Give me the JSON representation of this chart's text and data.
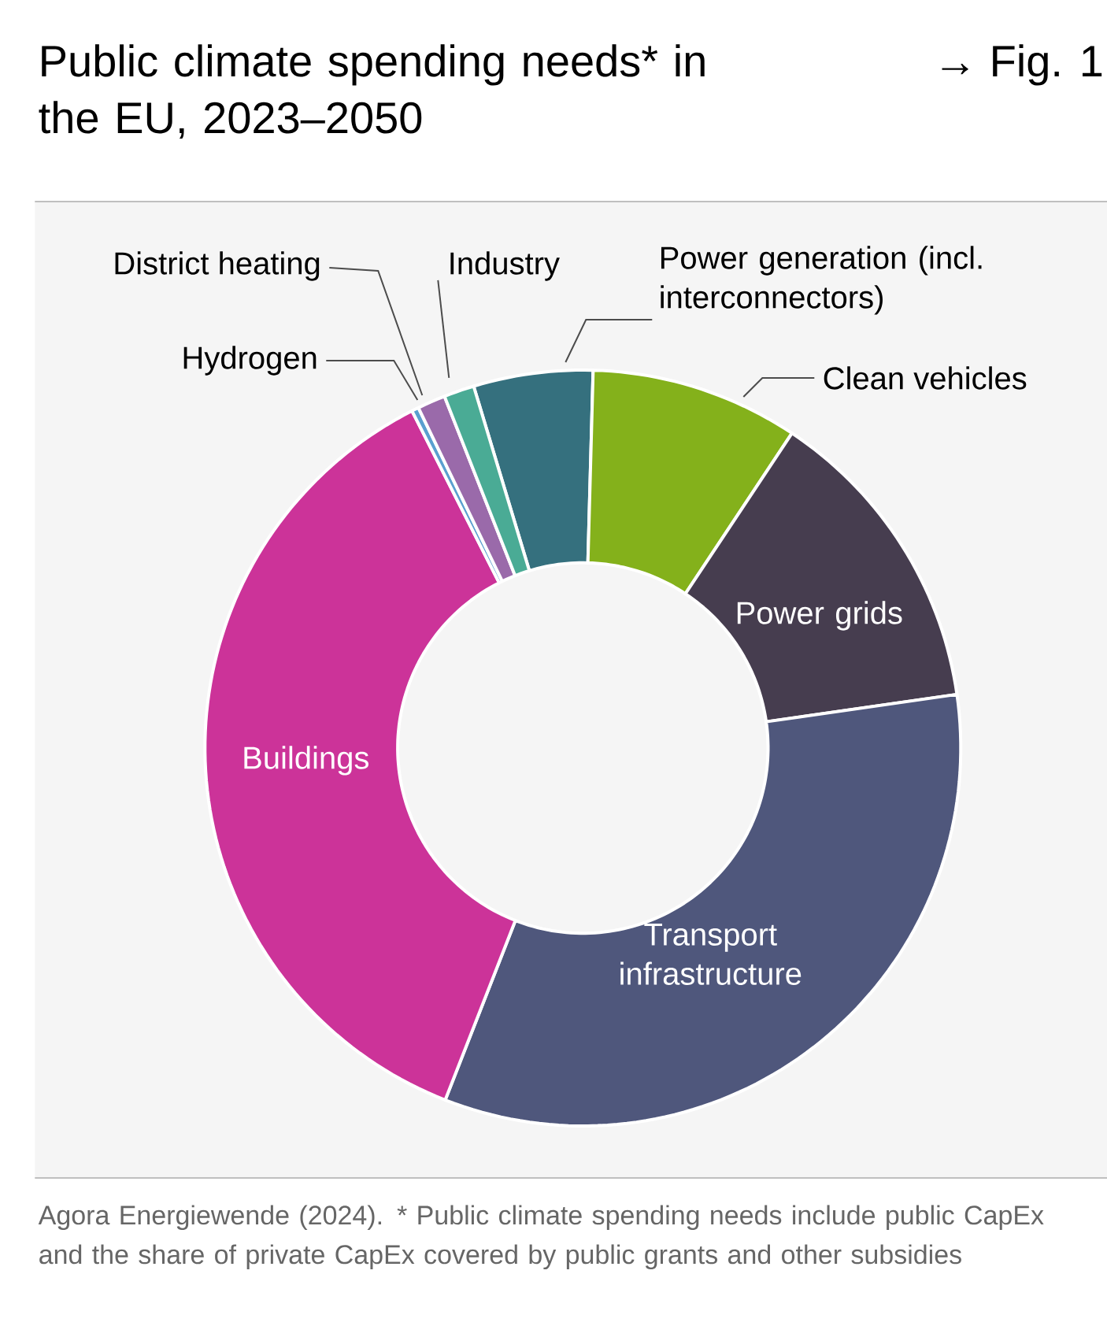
{
  "chart_data": {
    "type": "donut",
    "title": "Public climate spending needs* in the EU, 2023–2050",
    "annotations": [
      "→ Fig. 1",
      "Agora Energiewende (2024). * Public climate spending needs include public CapEx and the share of private CapEx covered by public grants and other subsidies"
    ],
    "categories": [
      "Power generation (incl. interconnectors)",
      "Clean vehicles",
      "Power grids",
      "Transport infrastructure",
      "Buildings",
      "Hydrogen",
      "District heating",
      "Industry"
    ],
    "values": [
      5.1,
      8.9,
      13.4,
      33.2,
      36.6,
      0.3,
      1.2,
      1.3
    ],
    "colors": [
      "#35707e",
      "#84b11b",
      "#463d4f",
      "#4f577c",
      "#cc3399",
      "#5aa0d0",
      "#9a6aaa",
      "#4aab95"
    ]
  }
}
